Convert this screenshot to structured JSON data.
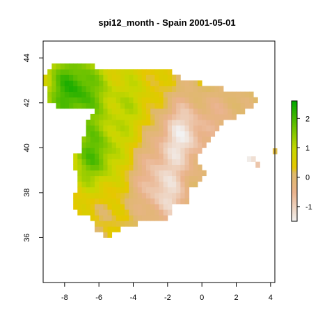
{
  "chart_data": {
    "type": "heatmap",
    "title": "spi12_month - Spain 2001-05-01",
    "xlabel": "",
    "ylabel": "",
    "xlim": [
      -9.25,
      4.25
    ],
    "ylim": [
      34.0,
      44.75
    ],
    "x_ticks": [
      -8,
      -6,
      -4,
      -2,
      0,
      2,
      4
    ],
    "x_tick_labels": [
      "-8",
      "-6",
      "-4",
      "-2",
      "0",
      "2",
      "4"
    ],
    "y_ticks": [
      36,
      38,
      40,
      42,
      44
    ],
    "y_tick_labels": [
      "36",
      "38",
      "40",
      "42",
      "44"
    ],
    "cell_size_deg": 0.25,
    "value_range": [
      -1.5,
      2.6
    ],
    "legend": {
      "placement": "right",
      "ticks": [
        2,
        1,
        0,
        -1
      ],
      "tick_labels": [
        "2",
        "1",
        "0",
        "-1"
      ],
      "colors": [
        "#f2f2f2",
        "#eab38d",
        "#e6c700",
        "#00a600"
      ]
    },
    "grid": false,
    "spatial_pattern": {
      "northwest_peak": {
        "lon": -7.5,
        "lat": 42.6,
        "value": 2.3
      },
      "west_central_peak": {
        "lon": -6.3,
        "lat": 39.6,
        "value": 1.7
      },
      "northeast_dry_minimum": {
        "lon": -1.2,
        "lat": 40.6,
        "value": -1.3
      },
      "isolated_cells": [
        {
          "lon": 2.75,
          "lat": 39.5,
          "value": -1.4
        },
        {
          "lon": 3.0,
          "lat": 39.5,
          "value": -1.2
        },
        {
          "lon": 3.25,
          "lat": 39.25,
          "value": -0.8
        },
        {
          "lon": 4.25,
          "lat": 39.85,
          "value": 0.2
        }
      ]
    }
  }
}
